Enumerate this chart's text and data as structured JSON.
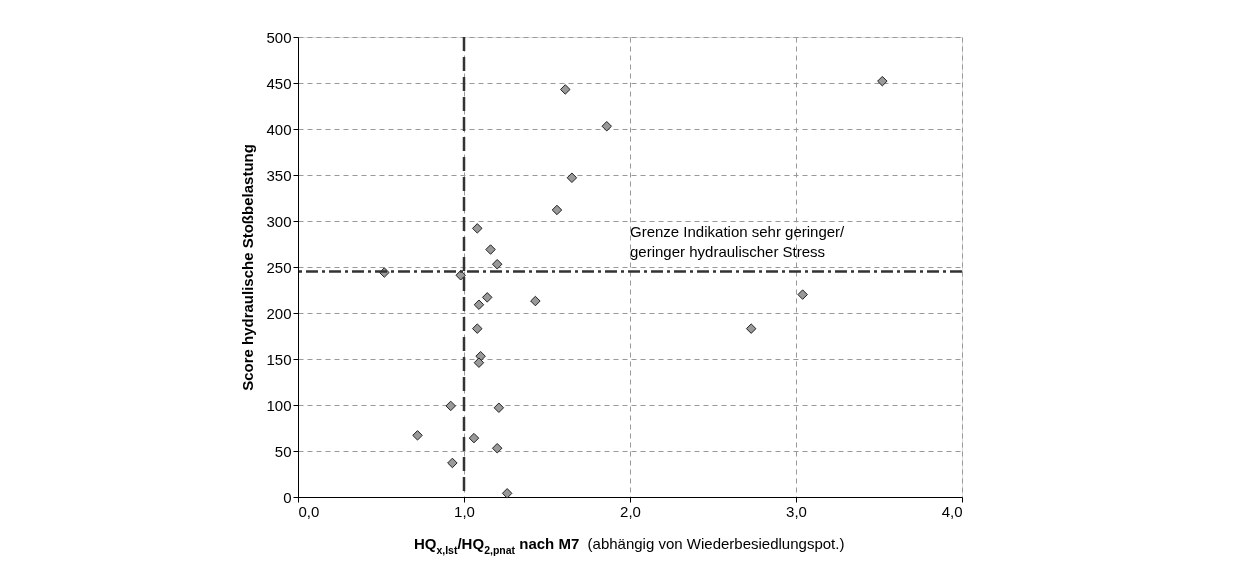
{
  "chart_data": {
    "type": "scatter",
    "xlabel": "HQ$_{x,Ist}$/HQ$_{2,pnat}$ nach  M7 (abhängig von Wiederbesiedlungspot.)",
    "ylabel": "Score hydraulische Stoßbelastung",
    "x": [
      1.61,
      1.86,
      1.65,
      1.56,
      1.08,
      1.16,
      1.2,
      0.52,
      0.98,
      1.14,
      1.43,
      1.09,
      1.08,
      1.1,
      1.09,
      0.92,
      1.21,
      0.72,
      1.06,
      1.2,
      0.93,
      1.26,
      3.52,
      3.04,
      2.73
    ],
    "series": [
      {
        "color": "#999999",
        "values": [
          443,
          403,
          347,
          312,
          292,
          269,
          253,
          244,
          241,
          217,
          213,
          209,
          183,
          153,
          146,
          99,
          97,
          67,
          64,
          53,
          37,
          4,
          452,
          220,
          183
        ]
      }
    ],
    "xlim": [
      0,
      4
    ],
    "xticks": [
      {
        "value": 0,
        "label": "0,0"
      },
      {
        "value": 1,
        "label": "1,0"
      },
      {
        "value": 2,
        "label": "2,0"
      },
      {
        "value": 3,
        "label": "3,0"
      },
      {
        "value": 4,
        "label": "4,0"
      }
    ],
    "ylim": [
      0,
      500
    ],
    "yticks": [
      0,
      50,
      100,
      150,
      200,
      250,
      300,
      350,
      400,
      450,
      500
    ],
    "ref_lines": [
      {
        "axis": "x",
        "value": 1,
        "color": "#333333",
        "line_style": "dashed"
      },
      {
        "axis": "y",
        "value": 245,
        "color": "#333333",
        "line_style": "dashdot",
        "label": "Grenze Indikation sehr geringer/\ngeringer hydraulischer Stress"
      }
    ],
    "grid": true,
    "marker": "diamond"
  }
}
